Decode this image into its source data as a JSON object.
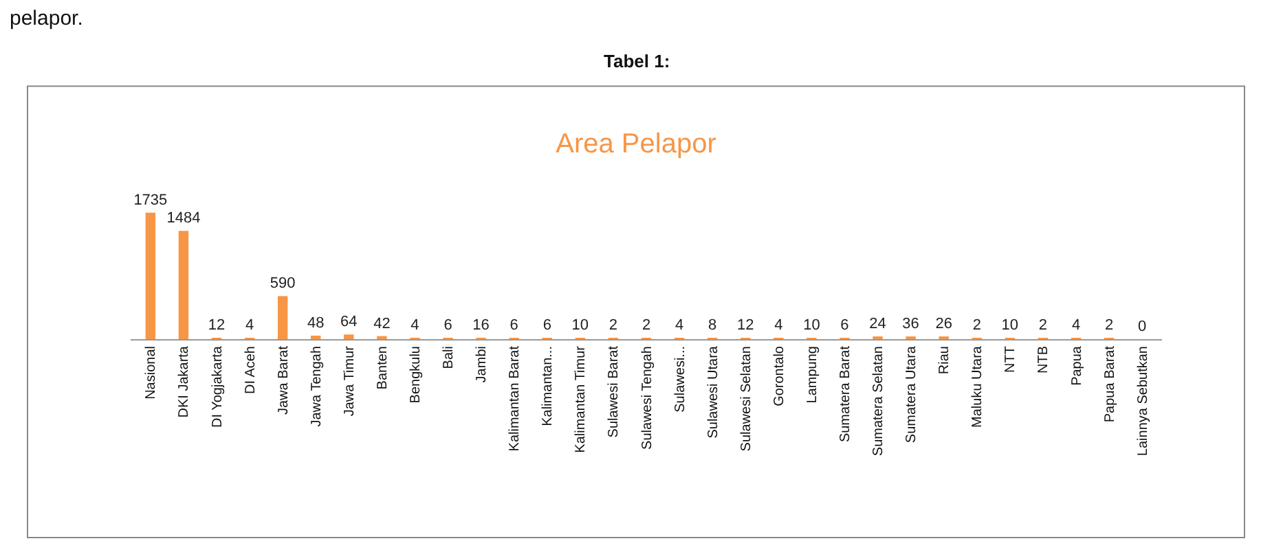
{
  "chart_data": {
    "type": "bar",
    "title": "Area Pelapor",
    "annotations": [
      "pelapor.",
      "Tabel 1:"
    ],
    "categories": [
      "Nasional",
      "DKI Jakarta",
      "DI Yogjakarta",
      "DI Aceh",
      "Jawa Barat",
      "Jawa Tengah",
      "Jawa Timur",
      "Banten",
      "Bengkulu",
      "Bali",
      "Jambi",
      "Kalimantan Barat",
      "Kalimantan...",
      "Kalimantan Timur",
      "Sulawesi Barat",
      "Sulawesi Tengah",
      "Sulawesi...",
      "Sulawesi Utara",
      "Sulawesi Selatan",
      "Gorontalo",
      "Lampung",
      "Sumatera Barat",
      "Sumatera Selatan",
      "Sumatera Utara",
      "Riau",
      "Maluku Utara",
      "NTT",
      "NTB",
      "Papua",
      "Papua Barat",
      "Lainnya Sebutkan"
    ],
    "values": [
      1735,
      1484,
      12,
      4,
      590,
      48,
      64,
      42,
      4,
      6,
      16,
      6,
      6,
      10,
      2,
      2,
      4,
      8,
      12,
      4,
      10,
      6,
      24,
      36,
      26,
      2,
      10,
      2,
      4,
      2,
      0
    ],
    "color": "#f79646",
    "data_labels": true,
    "legend": false
  }
}
